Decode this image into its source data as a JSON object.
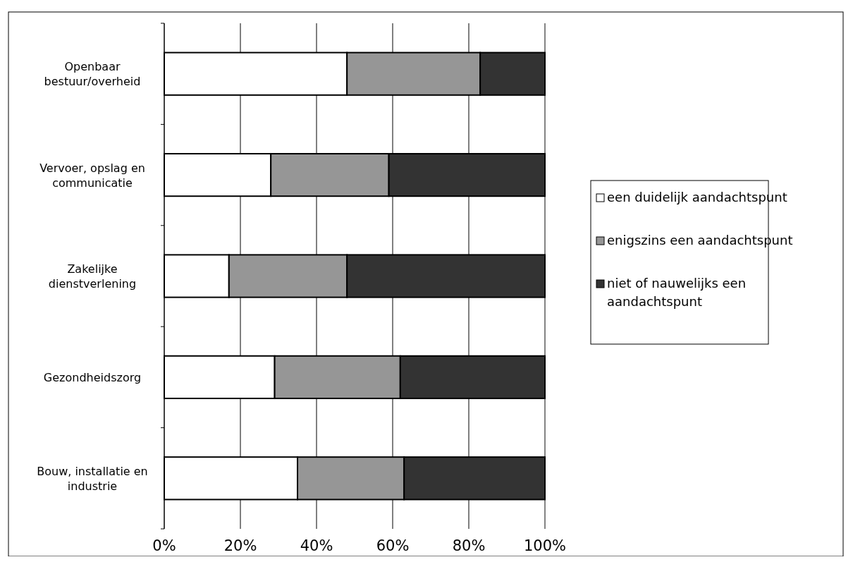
{
  "chart_data": {
    "type": "bar",
    "orientation": "horizontal",
    "stacked": true,
    "categories": [
      "Openbaar bestuur/overheid",
      "Vervoer, opslag en communicatie",
      "Zakelijke dienstverlening",
      "Gezondheidszorg",
      "Bouw, installatie en industrie"
    ],
    "series": [
      {
        "name": "een duidelijk aandachtspunt",
        "color": "#ffffff",
        "values": [
          48,
          28,
          17,
          29,
          35
        ]
      },
      {
        "name": "enigszins een aandachtspunt",
        "color": "#969696",
        "values": [
          35,
          31,
          31,
          33,
          28
        ]
      },
      {
        "name": "niet of nauwelijks een aandachtspunt",
        "color": "#333333",
        "values": [
          17,
          41,
          52,
          38,
          37
        ]
      }
    ],
    "xlim": [
      0,
      100
    ],
    "xticks": [
      {
        "value": 0,
        "label": "0%"
      },
      {
        "value": 20,
        "label": "20%"
      },
      {
        "value": 40,
        "label": "40%"
      },
      {
        "value": 60,
        "label": "60%"
      },
      {
        "value": 80,
        "label": "80%"
      },
      {
        "value": 100,
        "label": "100%"
      }
    ],
    "grid": "x",
    "legend": "right"
  }
}
